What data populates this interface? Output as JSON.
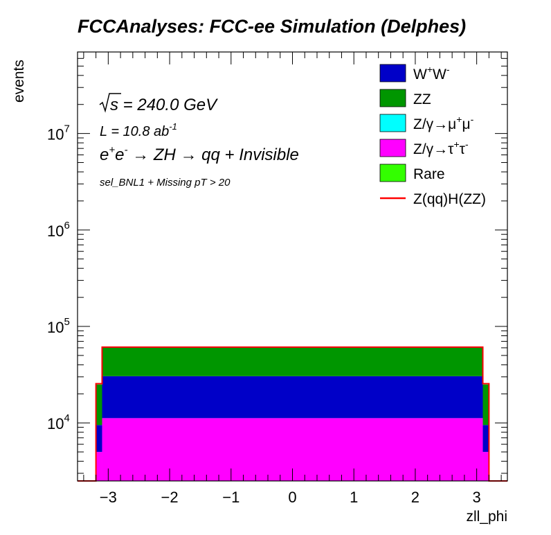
{
  "chart_data": {
    "type": "bar",
    "title": "FCCAnalyses: FCC-ee Simulation (Delphes)",
    "xlabel": "zll_phi",
    "ylabel": "events",
    "xlim": [
      -3.5,
      3.5
    ],
    "ylim": [
      2500,
      70000000
    ],
    "yscale": "log",
    "x_ticks": [
      -3,
      -2,
      -1,
      0,
      1,
      2,
      3
    ],
    "x_tick_labels": [
      "−3",
      "−2",
      "−1",
      "0",
      "1",
      "2",
      "3"
    ],
    "y_ticks": [
      10000,
      100000,
      1000000,
      10000000
    ],
    "y_tick_labels": [
      {
        "base": "10",
        "exp": "4"
      },
      {
        "base": "10",
        "exp": "5"
      },
      {
        "base": "10",
        "exp": "6"
      },
      {
        "base": "10",
        "exp": "7"
      }
    ],
    "stacked": true,
    "bin_edges": [
      -3.2,
      -3.1,
      3.1,
      3.2
    ],
    "series": [
      {
        "name": "Z/γ→τ⁺τ⁻",
        "color": "#ff00ff",
        "values": [
          5000,
          11200,
          5000
        ]
      },
      {
        "name": "W⁺W⁻",
        "color": "#0000c8",
        "values": [
          4500,
          19300,
          4500
        ]
      },
      {
        "name": "ZZ",
        "color": "#009600",
        "values": [
          15500,
          30500,
          15500
        ]
      },
      {
        "name": "Z/γ→μ⁺μ⁻",
        "color": "#00ffff",
        "values": [
          0,
          0,
          0
        ]
      },
      {
        "name": "Rare",
        "color": "#33ff00",
        "values": [
          0,
          0,
          0
        ]
      }
    ],
    "signal": {
      "name": "Z(qq)H(ZZ)",
      "color": "#ff0000",
      "values": [
        25500,
        61000,
        25500
      ]
    },
    "legend": {
      "placement": "top-right",
      "entries": [
        {
          "base": "W",
          "sup1": "+",
          "mid": "W",
          "sup2": "-",
          "color": "#0000c8",
          "kind": "box"
        },
        {
          "base": "ZZ",
          "sup1": "",
          "mid": "",
          "sup2": "",
          "color": "#009600",
          "kind": "box"
        },
        {
          "base": "Z/γ→μ",
          "sup1": "+",
          "mid": "μ",
          "sup2": "-",
          "color": "#00ffff",
          "kind": "box"
        },
        {
          "base": "Z/γ→τ",
          "sup1": "+",
          "mid": "τ",
          "sup2": "-",
          "color": "#ff00ff",
          "kind": "box"
        },
        {
          "base": "Rare",
          "sup1": "",
          "mid": "",
          "sup2": "",
          "color": "#33ff00",
          "kind": "box"
        },
        {
          "base": "Z(qq)H(ZZ)",
          "sup1": "",
          "mid": "",
          "sup2": "",
          "color": "#ff0000",
          "kind": "line"
        }
      ]
    },
    "annotations": {
      "sqrt_s": {
        "sym": "s",
        "rest": " = 240.0 GeV"
      },
      "lumi": {
        "text": "L = 10.8 ab",
        "exp": "-1"
      },
      "process": {
        "e": "e",
        "plus": "+",
        "e2": "e",
        "minus": "-",
        "rest": " → ZH → qq + Invisible"
      },
      "selection": "sel_BNL1 + Missing pT > 20"
    }
  }
}
